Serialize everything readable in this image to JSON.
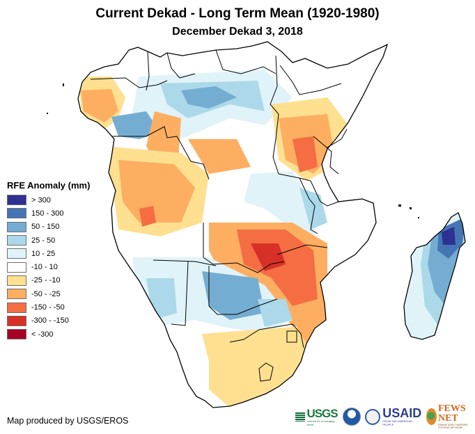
{
  "title": "Current Dekad - Long Term Mean (1920-1980)",
  "subtitle": "December Dekad 3, 2018",
  "legend": {
    "title": "RFE Anomaly (mm)",
    "items": [
      {
        "label": "> 300",
        "color": "#2e3192"
      },
      {
        "label": "150 - 300",
        "color": "#4575b4"
      },
      {
        "label": "50 - 150",
        "color": "#74add1"
      },
      {
        "label": "25 - 50",
        "color": "#abd9e9"
      },
      {
        "label": "10 - 25",
        "color": "#e0f3f8"
      },
      {
        "label": "-10 - 10",
        "color": "#ffffff"
      },
      {
        "label": "-25 - -10",
        "color": "#fee090"
      },
      {
        "label": "-50 - -25",
        "color": "#fdae61"
      },
      {
        "label": "-150 - -50",
        "color": "#f46d43"
      },
      {
        "label": "-300 - -150",
        "color": "#d73027"
      },
      {
        "label": "< -300",
        "color": "#a50026"
      }
    ]
  },
  "credit": "Map produced by USGS/EROS",
  "logos": {
    "usgs": "USGS",
    "usgs_tagline": "science for a changing world",
    "noaa": "NOAA",
    "usaid": "USAID",
    "usaid_tagline": "FROM THE AMERICAN PEOPLE",
    "fews": "FEWS NET",
    "fews_tagline": "FAMINE EARLY WARNING SYSTEMS NETWORK"
  },
  "map": {
    "region": "Southern and Eastern Africa",
    "features": [
      {
        "name": "gabon-cameroon-coast",
        "category": "-50 - -25"
      },
      {
        "name": "congo-basin-north",
        "category": "50 - 150"
      },
      {
        "name": "central-drc",
        "category": "-50 - -25"
      },
      {
        "name": "tanzania-central",
        "category": "-150 - -50"
      },
      {
        "name": "kenya-east",
        "category": "-50 - -25"
      },
      {
        "name": "angola-west",
        "category": "-50 - -25"
      },
      {
        "name": "zambia-zimbabwe-mozambique",
        "category": "-150 - -50"
      },
      {
        "name": "botswana-namibia",
        "category": "50 - 150"
      },
      {
        "name": "south-africa-east",
        "category": "-25 - -10"
      },
      {
        "name": "madagascar-northeast",
        "category": "> 300"
      },
      {
        "name": "madagascar-east",
        "category": "50 - 150"
      },
      {
        "name": "madagascar-west",
        "category": "10 - 25"
      }
    ]
  }
}
